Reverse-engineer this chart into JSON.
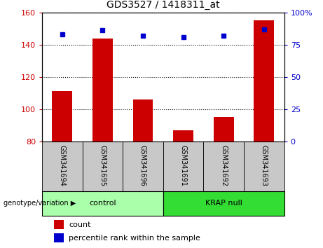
{
  "title": "GDS3527 / 1418311_at",
  "samples": [
    "GSM341694",
    "GSM341695",
    "GSM341696",
    "GSM341691",
    "GSM341692",
    "GSM341693"
  ],
  "count_values": [
    111,
    144,
    106,
    87,
    95,
    155
  ],
  "percentile_values": [
    83,
    86,
    82,
    81,
    82,
    87
  ],
  "ylim_left": [
    80,
    160
  ],
  "ylim_right": [
    0,
    100
  ],
  "yticks_left": [
    80,
    100,
    120,
    140,
    160
  ],
  "yticks_right": [
    0,
    25,
    50,
    75,
    100
  ],
  "bar_color": "#cc0000",
  "dot_color": "#0000cc",
  "bar_bottom": 80,
  "groups": [
    {
      "label": "control",
      "indices": [
        0,
        1,
        2
      ],
      "color": "#aaffaa"
    },
    {
      "label": "KRAP null",
      "indices": [
        3,
        4,
        5
      ],
      "color": "#33dd33"
    }
  ],
  "group_label_prefix": "genotype/variation",
  "legend_count_label": "count",
  "legend_percentile_label": "percentile rank within the sample",
  "tick_label_area_color": "#c8c8c8",
  "plot_bg_color": "#ffffff",
  "grid_color": "#000000"
}
